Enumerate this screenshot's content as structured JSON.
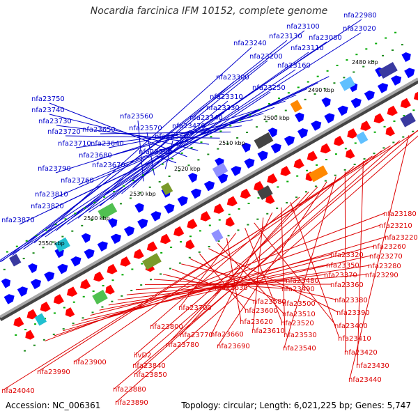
{
  "title": "Nocardia farcinica IFM 10152, complete genome",
  "footer": {
    "accession": "Accession: NC_006361",
    "summary": "Topology: circular; Length: 6,021,225 bp; Genes: 5,747"
  },
  "colors": {
    "forward_label": "#0000cc",
    "reverse_label": "#dd0000",
    "forward_arrow": "#0000ff",
    "reverse_arrow": "#ff0000",
    "backbone": "#777777",
    "tick": "#00aa00"
  },
  "kbp_marks": [
    {
      "label": "2480 kbp"
    },
    {
      "label": "2490 kbp"
    },
    {
      "label": "2500 kbp"
    },
    {
      "label": "2510 kbp"
    },
    {
      "label": "2520 kbp"
    },
    {
      "label": "2530 kbp"
    },
    {
      "label": "2540 kbp"
    },
    {
      "label": "2550 kbp"
    }
  ],
  "forward_genes": [
    "nfa22980",
    "nfa23020",
    "nfa23100",
    "nfa23130",
    "nfa23080",
    "nfa23240",
    "nfa23110",
    "nfa23200",
    "nfa23160",
    "nfa23300",
    "nfa23250",
    "nfa23310",
    "nfa23330",
    "nfa23340",
    "nfa23470",
    "nfa23560",
    "nfa23570",
    "nfa23550",
    "nfa23590",
    "nfa23750",
    "nfa23740",
    "nfa23730",
    "nfa23720",
    "nfa23650",
    "nfa23710",
    "nfa23640",
    "nfa23680",
    "nfa23670",
    "nfa23790",
    "nfa23760",
    "nfa23810",
    "nfa23820",
    "nfa23870"
  ],
  "reverse_genes": [
    "nfa23180",
    "nfa23210",
    "nfa23220",
    "nfa23260",
    "nfa23270",
    "nfa23320",
    "nfa23350",
    "nfa23280",
    "nfa23370",
    "nfa23290",
    "nfa23480",
    "nfa23360",
    "nfa23490",
    "nfa23630",
    "nfa23580",
    "nfa23380",
    "nfa23500",
    "nfa23600",
    "nfa23390",
    "nfa23510",
    "nfa23620",
    "nfa23700",
    "nfa23520",
    "nfa23400",
    "nfa23610",
    "nfa23660",
    "nfa23530",
    "nfa23410",
    "nfa23800",
    "nfa23770",
    "nfa23780",
    "nfa23690",
    "nfa23540",
    "nfa23420",
    "ilvD2",
    "nfa23430",
    "nfa23900",
    "nfa23840",
    "nfa23990",
    "nfa23850",
    "nfa23440",
    "nfa23880",
    "nfa24040",
    "nfa23890"
  ]
}
